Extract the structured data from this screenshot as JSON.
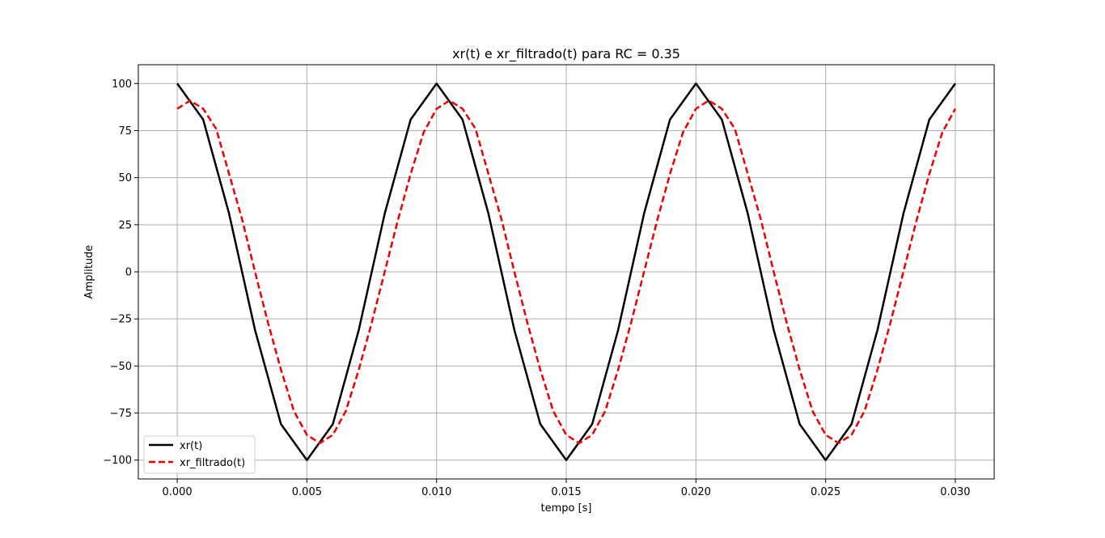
{
  "chart_data": {
    "type": "line",
    "title": "xr(t) e xr_filtrado(t) para RC = 0.35",
    "xlabel": "tempo [s]",
    "ylabel": "Amplitude",
    "xlim": [
      -0.0015,
      0.0315
    ],
    "ylim": [
      -110,
      110
    ],
    "grid": true,
    "legend_position": "lower-left",
    "x_ticks": [
      0.0,
      0.005,
      0.01,
      0.015,
      0.02,
      0.025,
      0.03
    ],
    "x_tick_labels": [
      "0.000",
      "0.005",
      "0.010",
      "0.015",
      "0.020",
      "0.025",
      "0.030"
    ],
    "y_ticks": [
      100,
      75,
      50,
      25,
      0,
      -25,
      -50,
      -75,
      -100
    ],
    "y_tick_labels": [
      "100",
      "75",
      "50",
      "25",
      "0",
      "−25",
      "−50",
      "−75",
      "−100"
    ],
    "series": [
      {
        "name": "xr(t)",
        "color": "#000000",
        "style": "solid",
        "x": [
          0.0,
          0.001,
          0.002,
          0.003,
          0.004,
          0.005,
          0.006,
          0.007,
          0.008,
          0.009,
          0.01,
          0.011,
          0.012,
          0.013,
          0.014,
          0.015,
          0.016,
          0.017,
          0.018,
          0.019,
          0.02,
          0.021,
          0.022,
          0.023,
          0.024,
          0.025,
          0.026,
          0.027,
          0.028,
          0.029,
          0.03
        ],
        "y": [
          100,
          80.9,
          30.9,
          -30.9,
          -80.9,
          -100,
          -80.9,
          -30.9,
          30.9,
          80.9,
          100,
          80.9,
          30.9,
          -30.9,
          -80.9,
          -100,
          -80.9,
          -30.9,
          30.9,
          80.9,
          100,
          80.9,
          30.9,
          -30.9,
          -80.9,
          -100,
          -80.9,
          -30.9,
          30.9,
          80.9,
          100
        ]
      },
      {
        "name": "xr_filtrado(t)",
        "color": "#ee0000",
        "style": "dashed",
        "x": [
          0.0,
          0.0005,
          0.001,
          0.0015,
          0.002,
          0.0025,
          0.003,
          0.0035,
          0.004,
          0.0045,
          0.005,
          0.0055,
          0.006,
          0.0065,
          0.007,
          0.0075,
          0.008,
          0.0085,
          0.009,
          0.0095,
          0.01,
          0.0105,
          0.011,
          0.0115,
          0.012,
          0.0125,
          0.013,
          0.0135,
          0.014,
          0.0145,
          0.015,
          0.0155,
          0.016,
          0.0165,
          0.017,
          0.0175,
          0.018,
          0.0185,
          0.019,
          0.0195,
          0.02,
          0.0205,
          0.021,
          0.0215,
          0.022,
          0.0225,
          0.023,
          0.0235,
          0.024,
          0.0245,
          0.025,
          0.0255,
          0.026,
          0.0265,
          0.027,
          0.0275,
          0.028,
          0.0285,
          0.029,
          0.0295,
          0.03
        ],
        "y": [
          86.6,
          91,
          86.6,
          76,
          52,
          28,
          0,
          -27,
          -52,
          -74,
          -86.6,
          -91,
          -86.6,
          -74,
          -52,
          -27,
          0,
          27,
          52,
          74,
          86.6,
          91,
          86.6,
          76,
          52,
          28,
          0,
          -27,
          -52,
          -74,
          -86.6,
          -91,
          -86.6,
          -74,
          -52,
          -27,
          0,
          27,
          52,
          74,
          86.6,
          91,
          86.6,
          76,
          52,
          28,
          0,
          -27,
          -52,
          -74,
          -86.6,
          -91,
          -86.6,
          -74,
          -52,
          -27,
          0,
          27,
          52,
          74,
          86.6
        ]
      }
    ]
  }
}
